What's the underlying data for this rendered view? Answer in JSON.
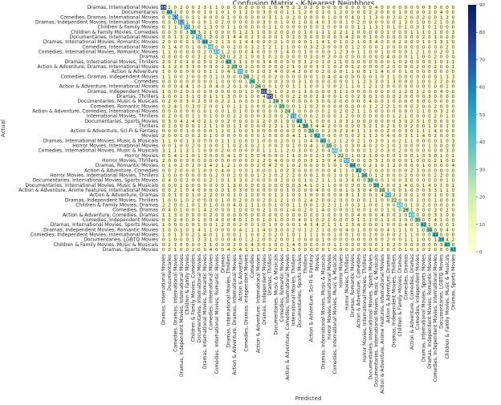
{
  "chart_data": {
    "type": "heatmap",
    "title": "Confusion Matrix - K-Nearest Neighbors",
    "xlabel": "Predicted",
    "ylabel": "Actual",
    "labels": [
      "Dramas, International Movies",
      "Documentaries",
      "Comedies, Dramas, International Movies",
      "Dramas, Independent Movies, International Movies",
      "Children & Family Movies",
      "Children & Family Movies, Comedies",
      "Documentaries, International Movies",
      "Dramas, International Movies, Romantic Movies",
      "Comedies, International Movies",
      "Comedies, International Movies, Romantic Movies",
      "Dramas",
      "Dramas, International Movies, Thrillers",
      "Action & Adventure, Dramas, International Movies",
      "Action & Adventure",
      "Comedies, Dramas, Independent Movies",
      "Comedies",
      "Action & Adventure, International Movies",
      "Dramas, Independent Movies",
      "Dramas, Thrillers",
      "Documentaries, Music & Musicals",
      "Comedies, Romantic Movies",
      "Action & Adventure, Comedies, International Movies",
      "International Movies, Thrillers",
      "Documentaries, Sports Movies",
      "Thrillers",
      "Action & Adventure, Sci-Fi & Fantasy",
      "Movies",
      "Dramas, International Movies, Music & Musicals",
      "Horror Movies, International Movies",
      "Comedies, International Movies, Music & Musicals",
      "Horror Movies",
      "Horror Movies, Thrillers",
      "Dramas, Romantic Movies",
      "Action & Adventure, Comedies",
      "Horror Movies, International Movies, Thrillers",
      "Documentaries, International Movies, Sports Movies",
      "Documentaries, International Movies, Music & Musicals",
      "Action & Adventure, Anime Features, International Movies",
      "Action & Adventure, Dramas",
      "Dramas, Independent Movies, Thrillers",
      "Children & Family Movies, Dramas",
      "Comedies, Dramas",
      "Action & Adventure, Comedies, Dramas",
      "Comedies, Independent Movies",
      "Dramas, International Movies, Sports Movies",
      "Dramas, Independent Movies, Romantic Movies",
      "Comedies, Independent Movies, International Movies",
      "Documentaries, LGBTQ Movies",
      "Children & Family Movies, Music & Musicals",
      "Dramas, Sports Movies"
    ],
    "diagonal": [
      88,
      40,
      63,
      62,
      55,
      38,
      50,
      44,
      46,
      48,
      22,
      40,
      28,
      50,
      28,
      36,
      26,
      90,
      85,
      28,
      30,
      24,
      56,
      42,
      38,
      30,
      42,
      40,
      30,
      46,
      22,
      50,
      44,
      40,
      36,
      30,
      38,
      26,
      52,
      22,
      46,
      28,
      48,
      30,
      42,
      36,
      44,
      38,
      40,
      42
    ],
    "row0_counts": [
      88,
      2,
      0,
      2,
      0,
      0,
      2,
      3,
      1,
      1,
      0,
      0,
      0,
      0,
      0,
      0,
      0,
      0,
      1,
      0,
      4,
      0,
      2,
      2,
      0,
      2,
      0,
      0,
      0,
      0,
      0,
      0,
      0,
      0,
      0,
      0,
      4,
      0,
      0,
      0,
      0,
      0,
      0,
      0,
      0,
      3,
      0,
      0,
      0,
      0
    ],
    "colorbar": {
      "min": 0,
      "max": 90,
      "ticks": [
        0,
        10,
        20,
        30,
        40,
        50,
        60,
        70,
        80,
        90
      ]
    },
    "colormap": [
      "#ffffd9",
      "#edf8b1",
      "#c7e9b4",
      "#7fcdbb",
      "#41b6c4",
      "#1d91c0",
      "#225ea8",
      "#253494",
      "#081d58"
    ]
  }
}
